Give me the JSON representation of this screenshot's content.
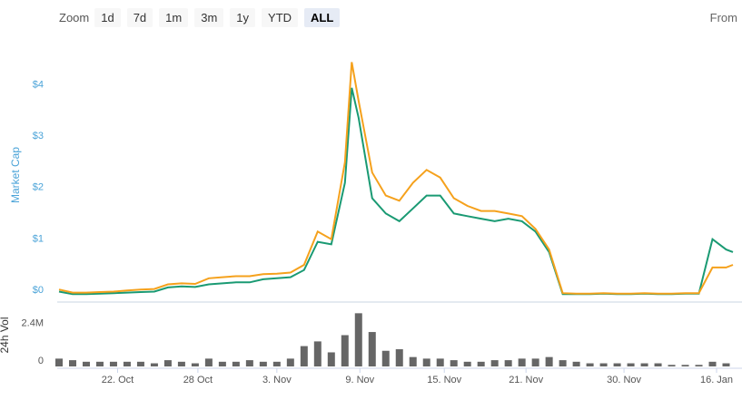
{
  "zoom": {
    "label": "Zoom",
    "buttons": [
      "1d",
      "7d",
      "1m",
      "3m",
      "1y",
      "YTD",
      "ALL"
    ],
    "selected": "ALL"
  },
  "from_label": "From",
  "chart_data": [
    {
      "type": "line",
      "y_title": "Market Cap",
      "x": [
        0,
        1,
        2,
        3,
        4,
        5,
        6,
        7,
        8,
        9,
        10,
        11,
        12,
        13,
        14,
        15,
        16,
        17,
        18,
        19,
        20,
        21,
        21.5,
        22,
        23,
        24,
        25,
        26,
        27,
        28,
        29,
        30,
        31,
        32,
        33,
        34,
        35,
        36,
        37,
        38,
        39,
        40,
        41,
        42,
        43,
        44,
        45,
        46,
        47,
        48,
        49,
        49.5
      ],
      "xlim": [
        0,
        49.5
      ],
      "ylim": [
        0,
        4.7
      ],
      "yticks": [
        {
          "value": 0,
          "label": "$0"
        },
        {
          "value": 1,
          "label": "$1"
        },
        {
          "value": 2,
          "label": "$2"
        },
        {
          "value": 3,
          "label": "$3"
        },
        {
          "value": 4,
          "label": "$4"
        }
      ],
      "grid": false,
      "series": [
        {
          "color": "#1a9a73",
          "values": [
            0.08,
            0.03,
            0.03,
            0.04,
            0.05,
            0.06,
            0.07,
            0.08,
            0.16,
            0.18,
            0.17,
            0.22,
            0.24,
            0.26,
            0.26,
            0.32,
            0.34,
            0.36,
            0.5,
            1.05,
            1.0,
            2.2,
            4.05,
            3.47,
            1.9,
            1.6,
            1.45,
            1.7,
            1.95,
            1.95,
            1.6,
            1.55,
            1.5,
            1.45,
            1.5,
            1.45,
            1.25,
            0.85,
            0.03,
            0.03,
            0.03,
            0.04,
            0.03,
            0.03,
            0.04,
            0.03,
            0.03,
            0.04,
            0.04,
            1.1,
            0.9,
            0.85
          ]
        },
        {
          "color": "#f5a11c",
          "values": [
            0.12,
            0.06,
            0.06,
            0.07,
            0.08,
            0.1,
            0.12,
            0.13,
            0.22,
            0.24,
            0.23,
            0.34,
            0.36,
            0.38,
            0.38,
            0.42,
            0.43,
            0.45,
            0.6,
            1.25,
            1.1,
            2.6,
            4.55,
            3.8,
            2.4,
            1.95,
            1.85,
            2.2,
            2.45,
            2.3,
            1.9,
            1.75,
            1.65,
            1.65,
            1.6,
            1.55,
            1.3,
            0.9,
            0.05,
            0.04,
            0.04,
            0.05,
            0.04,
            0.04,
            0.05,
            0.04,
            0.04,
            0.05,
            0.05,
            0.55,
            0.55,
            0.6
          ]
        }
      ]
    },
    {
      "type": "bar",
      "y_title": "24h Vol",
      "color": "#666666",
      "x": [
        0,
        1,
        2,
        3,
        4,
        5,
        6,
        7,
        8,
        9,
        10,
        11,
        12,
        13,
        14,
        15,
        16,
        17,
        18,
        19,
        20,
        21,
        22,
        23,
        24,
        25,
        26,
        27,
        28,
        29,
        30,
        31,
        32,
        33,
        34,
        35,
        36,
        37,
        38,
        39,
        40,
        41,
        42,
        43,
        44,
        45,
        46,
        47,
        48,
        49
      ],
      "values": [
        500000,
        400000,
        300000,
        300000,
        300000,
        300000,
        300000,
        200000,
        400000,
        300000,
        200000,
        500000,
        300000,
        300000,
        400000,
        300000,
        300000,
        500000,
        1300000,
        1600000,
        900000,
        2000000,
        3400000,
        2200000,
        1000000,
        1100000,
        600000,
        500000,
        500000,
        400000,
        300000,
        300000,
        400000,
        400000,
        500000,
        500000,
        600000,
        400000,
        300000,
        200000,
        200000,
        200000,
        200000,
        200000,
        200000,
        100000,
        100000,
        100000,
        300000,
        200000
      ],
      "xlim": [
        0,
        49.5
      ],
      "xticks": [
        {
          "value": 4.3,
          "label": "22. Oct"
        },
        {
          "value": 10.2,
          "label": "28 Oct"
        },
        {
          "value": 16,
          "label": "3. Nov"
        },
        {
          "value": 22.1,
          "label": "9. Nov"
        },
        {
          "value": 28.3,
          "label": "15. Nov"
        },
        {
          "value": 34.3,
          "label": "21. Nov"
        },
        {
          "value": 41.5,
          "label": "30. Nov"
        },
        {
          "value": 48.3,
          "label": "16. Jan"
        }
      ],
      "ylim": [
        0,
        4000000
      ],
      "yticks": [
        0,
        {
          "value": 2400000,
          "label": "2.4M"
        }
      ]
    }
  ]
}
